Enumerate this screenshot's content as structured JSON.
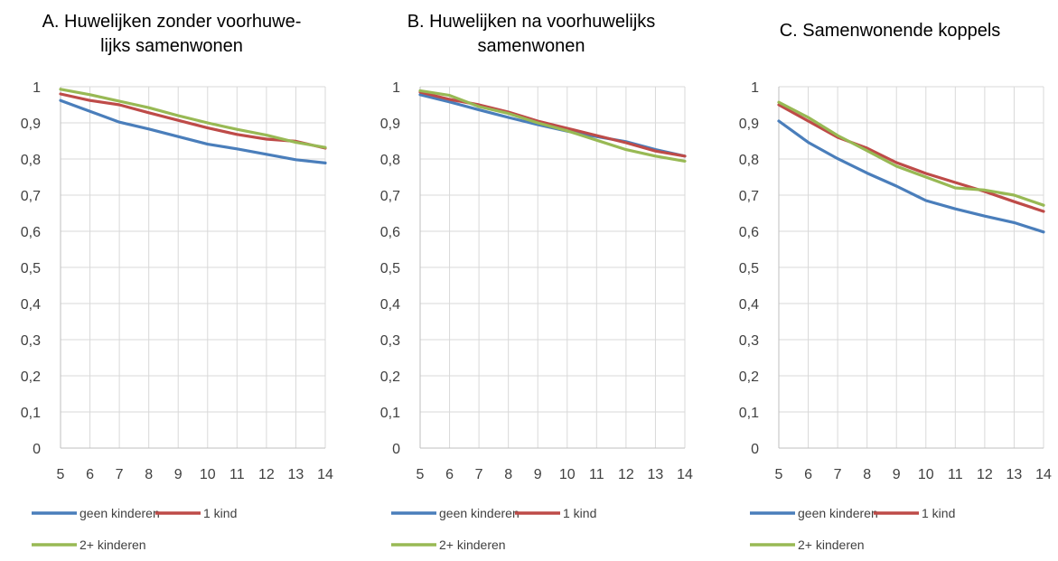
{
  "colors": {
    "geen kinderen": "#4a7ebb",
    "1 kind": "#be4b48",
    "2+ kinderen": "#98b954"
  },
  "chart_data": [
    {
      "type": "line",
      "title_lines": [
        "A. Huwelijken zonder voorhuwe-",
        "lijks samenwonen"
      ],
      "x": [
        5,
        6,
        7,
        8,
        9,
        10,
        11,
        12,
        13,
        14
      ],
      "ylim": [
        0,
        1
      ],
      "y_ticks": [
        "0",
        "0,1",
        "0,2",
        "0,3",
        "0,4",
        "0,5",
        "0,6",
        "0,7",
        "0,8",
        "0,9",
        "1"
      ],
      "grid": true,
      "legend": "bottom",
      "series": [
        {
          "name": "geen kinderen",
          "values": [
            0.962,
            0.932,
            0.902,
            0.883,
            0.862,
            0.841,
            0.828,
            0.813,
            0.798,
            0.789
          ]
        },
        {
          "name": "1 kind",
          "values": [
            0.98,
            0.962,
            0.95,
            0.928,
            0.907,
            0.886,
            0.868,
            0.855,
            0.849,
            0.83
          ]
        },
        {
          "name": "2+ kinderen",
          "values": [
            0.993,
            0.978,
            0.96,
            0.942,
            0.92,
            0.9,
            0.882,
            0.866,
            0.846,
            0.832
          ]
        }
      ]
    },
    {
      "type": "line",
      "title_lines": [
        "B. Huwelijken na voorhuwelijks",
        "samenwonen"
      ],
      "x": [
        5,
        6,
        7,
        8,
        9,
        10,
        11,
        12,
        13,
        14
      ],
      "ylim": [
        0,
        1
      ],
      "y_ticks": [
        "0",
        "0,1",
        "0,2",
        "0,3",
        "0,4",
        "0,5",
        "0,6",
        "0,7",
        "0,8",
        "0,9",
        "1"
      ],
      "grid": true,
      "legend": "bottom",
      "series": [
        {
          "name": "geen kinderen",
          "values": [
            0.978,
            0.958,
            0.936,
            0.915,
            0.895,
            0.877,
            0.862,
            0.848,
            0.826,
            0.808
          ]
        },
        {
          "name": "1 kind",
          "values": [
            0.985,
            0.965,
            0.95,
            0.93,
            0.905,
            0.885,
            0.865,
            0.845,
            0.822,
            0.808
          ]
        },
        {
          "name": "2+ kinderen",
          "values": [
            0.989,
            0.976,
            0.945,
            0.926,
            0.9,
            0.878,
            0.852,
            0.826,
            0.808,
            0.794
          ]
        }
      ]
    },
    {
      "type": "line",
      "title_lines": [
        "C. Samenwonende koppels"
      ],
      "x": [
        5,
        6,
        7,
        8,
        9,
        10,
        11,
        12,
        13,
        14
      ],
      "ylim": [
        0,
        1
      ],
      "y_ticks": [
        "0",
        "0,1",
        "0,2",
        "0,3",
        "0,4",
        "0,5",
        "0,6",
        "0,7",
        "0,8",
        "0,9",
        "1"
      ],
      "grid": true,
      "legend": "bottom",
      "series": [
        {
          "name": "geen kinderen",
          "values": [
            0.905,
            0.846,
            0.801,
            0.761,
            0.725,
            0.685,
            0.662,
            0.642,
            0.624,
            0.598
          ]
        },
        {
          "name": "1 kind",
          "values": [
            0.95,
            0.905,
            0.86,
            0.83,
            0.79,
            0.76,
            0.735,
            0.71,
            0.682,
            0.655
          ]
        },
        {
          "name": "2+ kinderen",
          "values": [
            0.957,
            0.915,
            0.865,
            0.823,
            0.78,
            0.75,
            0.72,
            0.714,
            0.7,
            0.672
          ]
        }
      ]
    }
  ]
}
